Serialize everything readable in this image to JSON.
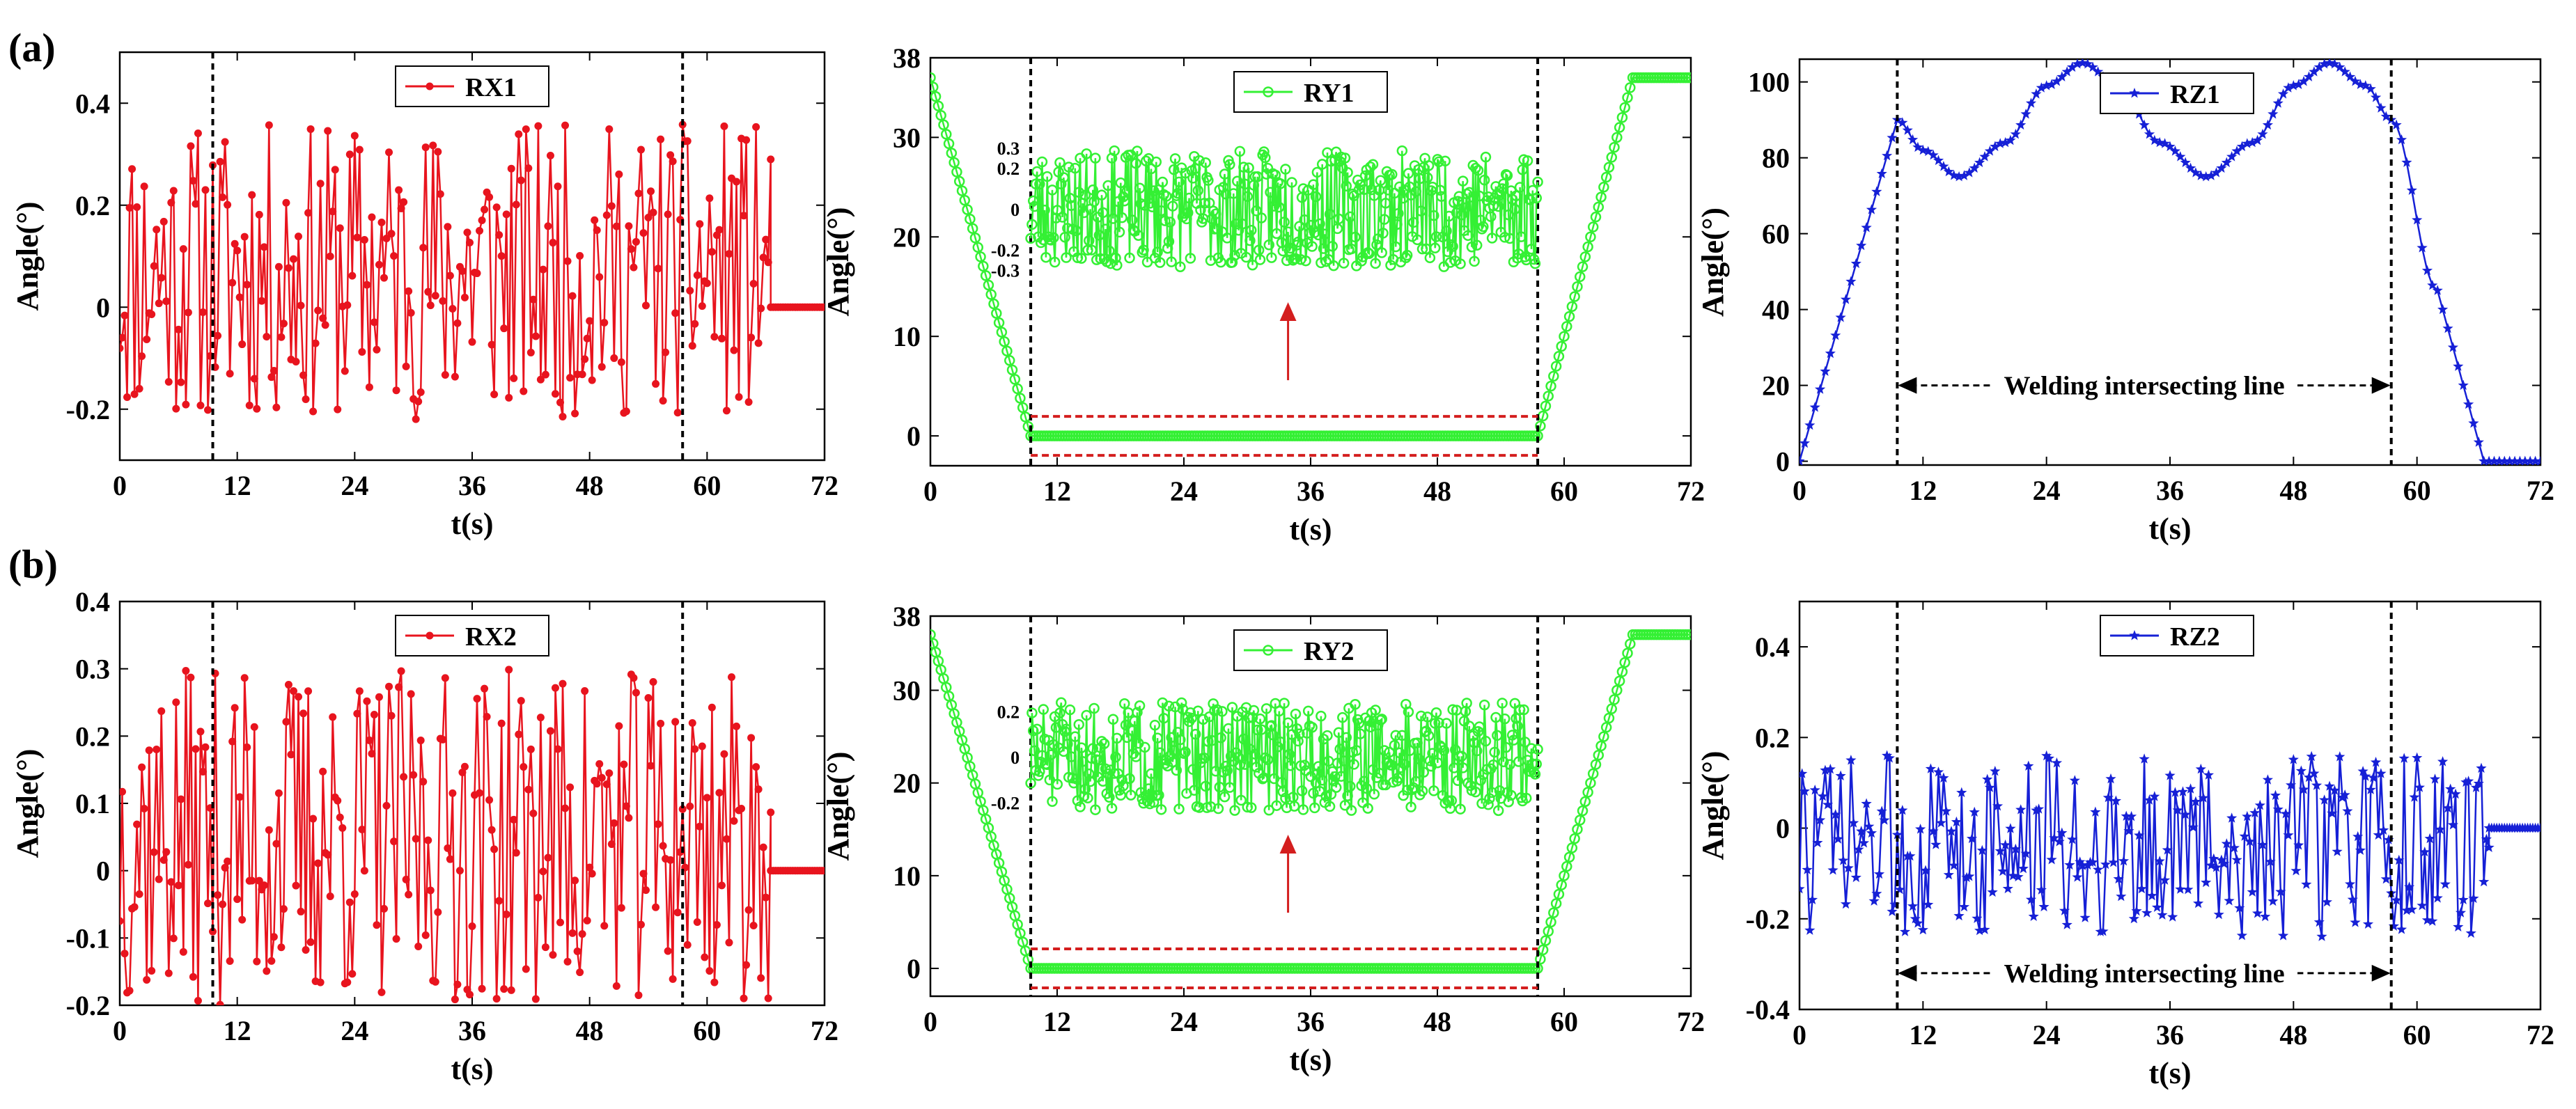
{
  "figure": {
    "row_labels": [
      "(a)",
      "(b)"
    ]
  },
  "colors": {
    "red": "#e8141e",
    "green": "#34f034",
    "blue": "#1620d6",
    "guide": "#000000",
    "zoom": "#d41e1e"
  },
  "chart_data": [
    {
      "id": "rx1",
      "type": "line",
      "title": "",
      "xlabel": "t(s)",
      "ylabel": "Angle(°)",
      "xlim": [
        0,
        72
      ],
      "ylim": [
        -0.3,
        0.5
      ],
      "xticks": [
        0,
        12,
        24,
        36,
        48,
        60,
        72
      ],
      "yticks": [
        -0.2,
        0,
        0.2,
        0.4
      ],
      "legend": "RX1",
      "legend_position": "top-center",
      "color": "red",
      "marker": "dot",
      "vlines": [
        9.5,
        57.5
      ],
      "series": [
        {
          "name": "RX1",
          "kind": "noise",
          "t_start": 0,
          "t_end": 66.5,
          "step": 0.25,
          "amplitude": 0.36,
          "low": -0.22,
          "seed": 11,
          "tail": {
            "t_start": 66.5,
            "t_end": 72,
            "value": 0
          }
        }
      ]
    },
    {
      "id": "ry1",
      "type": "line",
      "title": "",
      "xlabel": "t(s)",
      "ylabel": "Angle(°)",
      "xlim": [
        0,
        72
      ],
      "ylim": [
        -3,
        38
      ],
      "xticks": [
        0,
        12,
        24,
        36,
        48,
        60,
        72
      ],
      "yticks": [
        0,
        10,
        20,
        30,
        38
      ],
      "legend": "RY1",
      "legend_position": "top-center",
      "color": "green",
      "marker": "circle",
      "vlines": [
        9.5,
        57.5
      ],
      "series": [
        {
          "name": "RY1",
          "kind": "trapezoid",
          "start_value": 36,
          "t_ramp_down_end": 9.5,
          "flat_value": 0,
          "t_ramp_up_start": 57.5,
          "t_ramp_up_end": 66.5,
          "end_value": 36,
          "t_end": 72
        }
      ],
      "inset": {
        "type": "line",
        "description": "zoom of flat segment",
        "yticks": [
          -0.3,
          -0.2,
          0,
          0.2,
          0.3
        ],
        "ytick_labels": [
          "-0.3",
          "-0.2",
          "0",
          "0.2",
          "0.3"
        ],
        "t_start": 9.5,
        "t_end": 57.5,
        "amplitude": 0.3,
        "seed": 23
      }
    },
    {
      "id": "rz1",
      "type": "line",
      "title": "",
      "xlabel": "t(s)",
      "ylabel": "Angle(°)",
      "xlim": [
        0,
        72
      ],
      "ylim": [
        -1,
        106
      ],
      "xticks": [
        0,
        12,
        24,
        36,
        48,
        60,
        72
      ],
      "yticks": [
        0,
        20,
        40,
        60,
        80,
        100
      ],
      "legend": "RZ1",
      "legend_position": "top-center",
      "color": "blue",
      "marker": "star",
      "vlines": [
        9.5,
        57.5
      ],
      "annotation": "Welding intersecting line",
      "series": [
        {
          "name": "RZ1",
          "kind": "points",
          "x": [
            0,
            9.5,
            12,
            15.5,
            20,
            24,
            27.5,
            31,
            35,
            39.5,
            44,
            48,
            51.5,
            55,
            57.5,
            62,
            66.5,
            67,
            72
          ],
          "y": [
            0,
            90,
            82,
            75,
            84,
            99,
            105,
            99,
            84,
            75,
            84,
            99,
            105,
            99,
            90,
            45,
            0,
            0,
            0
          ]
        }
      ]
    },
    {
      "id": "rx2",
      "type": "line",
      "title": "",
      "xlabel": "t(s)",
      "ylabel": "Angle(°)",
      "xlim": [
        0,
        72
      ],
      "ylim": [
        -0.2,
        0.4
      ],
      "xticks": [
        0,
        12,
        24,
        36,
        48,
        60,
        72
      ],
      "yticks": [
        -0.2,
        -0.1,
        0,
        0.1,
        0.2,
        0.3,
        0.4
      ],
      "legend": "RX2",
      "legend_position": "top-center",
      "color": "red",
      "marker": "dot",
      "vlines": [
        9.5,
        57.5
      ],
      "series": [
        {
          "name": "RX2",
          "kind": "noise",
          "t_start": 0,
          "t_end": 66.5,
          "step": 0.25,
          "amplitude": 0.3,
          "low": -0.2,
          "seed": 37,
          "tail": {
            "t_start": 66.5,
            "t_end": 72,
            "value": 0
          }
        }
      ]
    },
    {
      "id": "ry2",
      "type": "line",
      "title": "",
      "xlabel": "t(s)",
      "ylabel": "Angle(°)",
      "xlim": [
        0,
        72
      ],
      "ylim": [
        -3,
        38
      ],
      "xticks": [
        0,
        12,
        24,
        36,
        48,
        60,
        72
      ],
      "yticks": [
        0,
        10,
        20,
        30,
        38
      ],
      "legend": "RY2",
      "legend_position": "top-center",
      "color": "green",
      "marker": "circle",
      "vlines": [
        9.5,
        57.5
      ],
      "series": [
        {
          "name": "RY2",
          "kind": "trapezoid",
          "start_value": 36,
          "t_ramp_down_end": 9.5,
          "flat_value": 0,
          "t_ramp_up_start": 57.5,
          "t_ramp_up_end": 66.5,
          "end_value": 36,
          "t_end": 72
        }
      ],
      "inset": {
        "type": "line",
        "description": "zoom of flat segment",
        "yticks": [
          -0.2,
          0,
          0.2
        ],
        "ytick_labels": [
          "-0.2",
          "0",
          "0.2"
        ],
        "t_start": 9.5,
        "t_end": 57.5,
        "amplitude": 0.25,
        "seed": 51
      }
    },
    {
      "id": "rz2",
      "type": "line",
      "title": "",
      "xlabel": "t(s)",
      "ylabel": "Angle(°)",
      "xlim": [
        0,
        72
      ],
      "ylim": [
        -0.4,
        0.5
      ],
      "xticks": [
        0,
        12,
        24,
        36,
        48,
        60,
        72
      ],
      "yticks": [
        -0.4,
        -0.2,
        0,
        0.2,
        0.4
      ],
      "legend": "RZ2",
      "legend_position": "top-center",
      "color": "blue",
      "marker": "star",
      "vlines": [
        9.5,
        57.5
      ],
      "annotation": "Welding intersecting line",
      "series": [
        {
          "name": "RZ2",
          "kind": "noise",
          "t_start": 0,
          "t_end": 67,
          "step": 0.25,
          "amplitude": 0.16,
          "low": -0.24,
          "seed": 73,
          "tail": {
            "t_start": 67,
            "t_end": 72,
            "value": 0
          }
        }
      ]
    }
  ]
}
